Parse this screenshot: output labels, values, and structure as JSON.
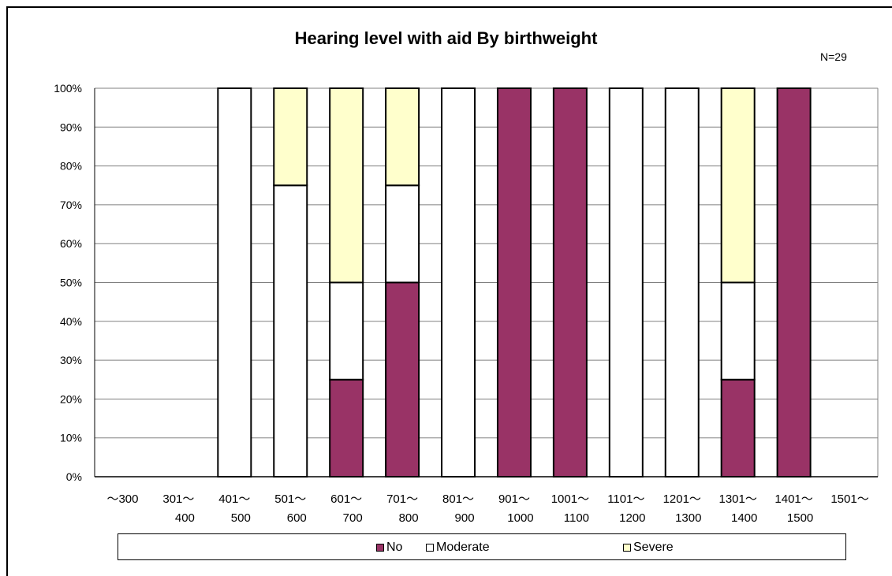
{
  "chart_data": {
    "type": "bar",
    "stacked": true,
    "title": "Hearing level with aid By birthweight",
    "annotation": "N=29",
    "xlabel": "",
    "ylabel": "",
    "ylim": [
      0,
      100
    ],
    "y_ticks": [
      "0%",
      "10%",
      "20%",
      "30%",
      "40%",
      "50%",
      "60%",
      "70%",
      "80%",
      "90%",
      "100%"
    ],
    "grid": true,
    "legend_position": "bottom",
    "categories": [
      [
        "～300",
        ""
      ],
      [
        "301～",
        "400"
      ],
      [
        "401～",
        "500"
      ],
      [
        "501～",
        "600"
      ],
      [
        "601～",
        "700"
      ],
      [
        "701～",
        "800"
      ],
      [
        "801～",
        "900"
      ],
      [
        "901～",
        "1000"
      ],
      [
        "1001～",
        "1100"
      ],
      [
        "1101～",
        "1200"
      ],
      [
        "1201～",
        "1300"
      ],
      [
        "1301～",
        "1400"
      ],
      [
        "1401～",
        "1500"
      ],
      [
        "1501～",
        ""
      ]
    ],
    "series": [
      {
        "name": "No",
        "color": "#993366",
        "values": [
          0,
          0,
          0,
          0,
          25,
          50,
          0,
          100,
          100,
          0,
          0,
          25,
          100,
          0
        ]
      },
      {
        "name": "Moderate",
        "color": "#ffffff",
        "values": [
          0,
          0,
          100,
          75,
          25,
          25,
          100,
          0,
          0,
          100,
          100,
          25,
          0,
          0
        ]
      },
      {
        "name": "Severe",
        "color": "#ffffcc",
        "values": [
          0,
          0,
          0,
          25,
          50,
          25,
          0,
          0,
          0,
          0,
          0,
          50,
          0,
          0
        ]
      }
    ]
  }
}
